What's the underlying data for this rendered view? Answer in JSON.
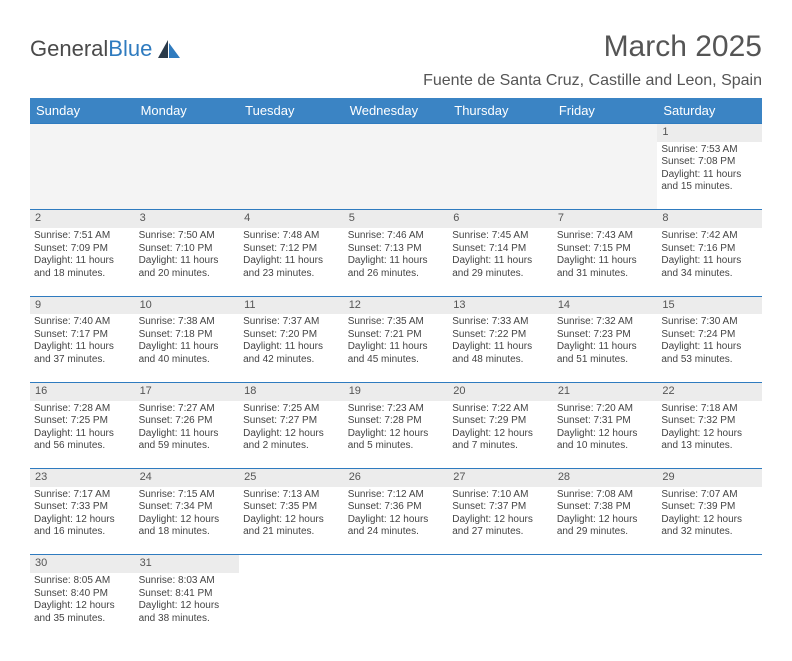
{
  "brand": {
    "name_a": "General",
    "name_b": "Blue"
  },
  "header": {
    "month_title": "March 2025",
    "location": "Fuente de Santa Cruz, Castille and Leon, Spain"
  },
  "colors": {
    "header_bg": "#3b84c4",
    "accent_blue": "#2f7bbf",
    "daynum_bg": "#ececec",
    "text": "#444444"
  },
  "weekdays": [
    "Sunday",
    "Monday",
    "Tuesday",
    "Wednesday",
    "Thursday",
    "Friday",
    "Saturday"
  ],
  "weeks": [
    [
      null,
      null,
      null,
      null,
      null,
      null,
      {
        "n": "1",
        "sr": "Sunrise: 7:53 AM",
        "ss": "Sunset: 7:08 PM",
        "dl1": "Daylight: 11 hours",
        "dl2": "and 15 minutes."
      }
    ],
    [
      {
        "n": "2",
        "sr": "Sunrise: 7:51 AM",
        "ss": "Sunset: 7:09 PM",
        "dl1": "Daylight: 11 hours",
        "dl2": "and 18 minutes."
      },
      {
        "n": "3",
        "sr": "Sunrise: 7:50 AM",
        "ss": "Sunset: 7:10 PM",
        "dl1": "Daylight: 11 hours",
        "dl2": "and 20 minutes."
      },
      {
        "n": "4",
        "sr": "Sunrise: 7:48 AM",
        "ss": "Sunset: 7:12 PM",
        "dl1": "Daylight: 11 hours",
        "dl2": "and 23 minutes."
      },
      {
        "n": "5",
        "sr": "Sunrise: 7:46 AM",
        "ss": "Sunset: 7:13 PM",
        "dl1": "Daylight: 11 hours",
        "dl2": "and 26 minutes."
      },
      {
        "n": "6",
        "sr": "Sunrise: 7:45 AM",
        "ss": "Sunset: 7:14 PM",
        "dl1": "Daylight: 11 hours",
        "dl2": "and 29 minutes."
      },
      {
        "n": "7",
        "sr": "Sunrise: 7:43 AM",
        "ss": "Sunset: 7:15 PM",
        "dl1": "Daylight: 11 hours",
        "dl2": "and 31 minutes."
      },
      {
        "n": "8",
        "sr": "Sunrise: 7:42 AM",
        "ss": "Sunset: 7:16 PM",
        "dl1": "Daylight: 11 hours",
        "dl2": "and 34 minutes."
      }
    ],
    [
      {
        "n": "9",
        "sr": "Sunrise: 7:40 AM",
        "ss": "Sunset: 7:17 PM",
        "dl1": "Daylight: 11 hours",
        "dl2": "and 37 minutes."
      },
      {
        "n": "10",
        "sr": "Sunrise: 7:38 AM",
        "ss": "Sunset: 7:18 PM",
        "dl1": "Daylight: 11 hours",
        "dl2": "and 40 minutes."
      },
      {
        "n": "11",
        "sr": "Sunrise: 7:37 AM",
        "ss": "Sunset: 7:20 PM",
        "dl1": "Daylight: 11 hours",
        "dl2": "and 42 minutes."
      },
      {
        "n": "12",
        "sr": "Sunrise: 7:35 AM",
        "ss": "Sunset: 7:21 PM",
        "dl1": "Daylight: 11 hours",
        "dl2": "and 45 minutes."
      },
      {
        "n": "13",
        "sr": "Sunrise: 7:33 AM",
        "ss": "Sunset: 7:22 PM",
        "dl1": "Daylight: 11 hours",
        "dl2": "and 48 minutes."
      },
      {
        "n": "14",
        "sr": "Sunrise: 7:32 AM",
        "ss": "Sunset: 7:23 PM",
        "dl1": "Daylight: 11 hours",
        "dl2": "and 51 minutes."
      },
      {
        "n": "15",
        "sr": "Sunrise: 7:30 AM",
        "ss": "Sunset: 7:24 PM",
        "dl1": "Daylight: 11 hours",
        "dl2": "and 53 minutes."
      }
    ],
    [
      {
        "n": "16",
        "sr": "Sunrise: 7:28 AM",
        "ss": "Sunset: 7:25 PM",
        "dl1": "Daylight: 11 hours",
        "dl2": "and 56 minutes."
      },
      {
        "n": "17",
        "sr": "Sunrise: 7:27 AM",
        "ss": "Sunset: 7:26 PM",
        "dl1": "Daylight: 11 hours",
        "dl2": "and 59 minutes."
      },
      {
        "n": "18",
        "sr": "Sunrise: 7:25 AM",
        "ss": "Sunset: 7:27 PM",
        "dl1": "Daylight: 12 hours",
        "dl2": "and 2 minutes."
      },
      {
        "n": "19",
        "sr": "Sunrise: 7:23 AM",
        "ss": "Sunset: 7:28 PM",
        "dl1": "Daylight: 12 hours",
        "dl2": "and 5 minutes."
      },
      {
        "n": "20",
        "sr": "Sunrise: 7:22 AM",
        "ss": "Sunset: 7:29 PM",
        "dl1": "Daylight: 12 hours",
        "dl2": "and 7 minutes."
      },
      {
        "n": "21",
        "sr": "Sunrise: 7:20 AM",
        "ss": "Sunset: 7:31 PM",
        "dl1": "Daylight: 12 hours",
        "dl2": "and 10 minutes."
      },
      {
        "n": "22",
        "sr": "Sunrise: 7:18 AM",
        "ss": "Sunset: 7:32 PM",
        "dl1": "Daylight: 12 hours",
        "dl2": "and 13 minutes."
      }
    ],
    [
      {
        "n": "23",
        "sr": "Sunrise: 7:17 AM",
        "ss": "Sunset: 7:33 PM",
        "dl1": "Daylight: 12 hours",
        "dl2": "and 16 minutes."
      },
      {
        "n": "24",
        "sr": "Sunrise: 7:15 AM",
        "ss": "Sunset: 7:34 PM",
        "dl1": "Daylight: 12 hours",
        "dl2": "and 18 minutes."
      },
      {
        "n": "25",
        "sr": "Sunrise: 7:13 AM",
        "ss": "Sunset: 7:35 PM",
        "dl1": "Daylight: 12 hours",
        "dl2": "and 21 minutes."
      },
      {
        "n": "26",
        "sr": "Sunrise: 7:12 AM",
        "ss": "Sunset: 7:36 PM",
        "dl1": "Daylight: 12 hours",
        "dl2": "and 24 minutes."
      },
      {
        "n": "27",
        "sr": "Sunrise: 7:10 AM",
        "ss": "Sunset: 7:37 PM",
        "dl1": "Daylight: 12 hours",
        "dl2": "and 27 minutes."
      },
      {
        "n": "28",
        "sr": "Sunrise: 7:08 AM",
        "ss": "Sunset: 7:38 PM",
        "dl1": "Daylight: 12 hours",
        "dl2": "and 29 minutes."
      },
      {
        "n": "29",
        "sr": "Sunrise: 7:07 AM",
        "ss": "Sunset: 7:39 PM",
        "dl1": "Daylight: 12 hours",
        "dl2": "and 32 minutes."
      }
    ],
    [
      {
        "n": "30",
        "sr": "Sunrise: 8:05 AM",
        "ss": "Sunset: 8:40 PM",
        "dl1": "Daylight: 12 hours",
        "dl2": "and 35 minutes."
      },
      {
        "n": "31",
        "sr": "Sunrise: 8:03 AM",
        "ss": "Sunset: 8:41 PM",
        "dl1": "Daylight: 12 hours",
        "dl2": "and 38 minutes."
      },
      null,
      null,
      null,
      null,
      null
    ]
  ]
}
